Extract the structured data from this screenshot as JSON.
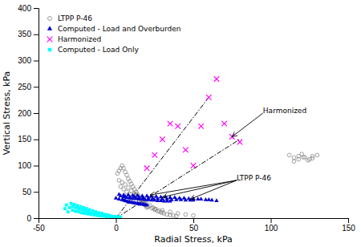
{
  "chart_data": {
    "type": "scatter",
    "xlabel": "Radial Stress, kPa",
    "ylabel": "Vertical Stress, kPa",
    "xlim": [
      -50,
      150
    ],
    "ylim": [
      0,
      400
    ],
    "xticks": [
      -50,
      0,
      50,
      100,
      150
    ],
    "yticks": [
      0,
      50,
      100,
      150,
      200,
      250,
      300,
      350,
      400
    ],
    "legend": "upper left",
    "series": [
      {
        "name": "LTPP P-46",
        "color": "#888888",
        "marker": "circle-open",
        "x": [
          1,
          2,
          3,
          4,
          5,
          6,
          7,
          8,
          9,
          10,
          11,
          12,
          13,
          14,
          15,
          16,
          17,
          18,
          19,
          20,
          3,
          5,
          7,
          9,
          11,
          13,
          15,
          17,
          19,
          21,
          23,
          25,
          27,
          29,
          31,
          33,
          35,
          37,
          39,
          2,
          4,
          6,
          8,
          10,
          12,
          14,
          16,
          18,
          20,
          22,
          24,
          26,
          28,
          30,
          5,
          10,
          15,
          20,
          25,
          30,
          35,
          40,
          45,
          50,
          112,
          115,
          118,
          120,
          122,
          125,
          127,
          130,
          115,
          118,
          121,
          124,
          127
        ],
        "values": [
          85,
          90,
          95,
          100,
          95,
          88,
          82,
          75,
          70,
          65,
          60,
          55,
          50,
          45,
          40,
          36,
          32,
          28,
          24,
          20,
          60,
          55,
          50,
          45,
          42,
          38,
          34,
          30,
          26,
          22,
          19,
          16,
          13,
          11,
          9,
          7,
          6,
          5,
          4,
          72,
          68,
          64,
          58,
          52,
          47,
          42,
          37,
          33,
          28,
          24,
          20,
          17,
          14,
          11,
          38,
          32,
          27,
          22,
          18,
          15,
          12,
          9,
          7,
          5,
          120,
          115,
          118,
          122,
          116,
          112,
          118,
          120,
          108,
          112,
          116,
          110,
          114
        ]
      },
      {
        "name": "Computed - Load and Overburden",
        "color": "#0000CD",
        "marker": "triangle",
        "x": [
          0,
          2,
          4,
          5,
          6,
          7,
          8,
          9,
          10,
          11,
          12,
          13,
          14,
          15,
          16,
          17,
          18,
          19,
          20,
          5,
          7,
          9,
          11,
          13,
          15,
          17,
          19,
          21,
          23,
          25,
          27,
          29,
          31,
          33,
          35,
          3,
          6,
          9,
          12,
          15,
          18,
          21,
          24,
          27,
          30,
          33,
          36,
          39,
          42,
          45,
          48,
          50,
          2,
          5,
          8,
          11,
          14,
          17,
          20,
          23,
          26,
          29,
          32,
          35,
          38,
          41,
          44,
          47,
          50,
          53,
          55,
          58,
          60,
          62,
          65
        ],
        "values": [
          38,
          36,
          35,
          34,
          33,
          32,
          31,
          30,
          30,
          29,
          29,
          28,
          28,
          27,
          27,
          26,
          26,
          25,
          25,
          40,
          39,
          38,
          37,
          37,
          36,
          36,
          35,
          35,
          34,
          34,
          33,
          33,
          32,
          32,
          32,
          42,
          41,
          40,
          40,
          39,
          38,
          38,
          37,
          37,
          36,
          36,
          35,
          35,
          35,
          34,
          34,
          34,
          45,
          44,
          44,
          43,
          43,
          42,
          42,
          41,
          41,
          40,
          40,
          39,
          39,
          38,
          38,
          37,
          37,
          36,
          36,
          35,
          35,
          34,
          33
        ]
      },
      {
        "name": "Harmonized",
        "color": "#FF00FF",
        "marker": "x",
        "x": [
          20,
          25,
          30,
          35,
          40,
          45,
          50,
          55,
          60,
          65,
          70,
          75,
          80
        ],
        "values": [
          95,
          120,
          150,
          180,
          175,
          130,
          100,
          175,
          230,
          265,
          180,
          155,
          145
        ]
      },
      {
        "name": "Computed - Load Only",
        "color": "#00FFFF",
        "marker": "square",
        "x": [
          -33,
          -30,
          -28,
          -26,
          -24,
          -22,
          -20,
          -18,
          -16,
          -14,
          -12,
          -10,
          -8,
          -6,
          -4,
          -2,
          0,
          2,
          3,
          -32,
          -29,
          -27,
          -25,
          -23,
          -21,
          -19,
          -17,
          -15,
          -13,
          -11,
          -9,
          -7,
          -5,
          -3,
          -1,
          1,
          -31,
          -28,
          -26,
          -24,
          -22,
          -20,
          -18,
          -16,
          -14,
          -12,
          -10,
          -8,
          -6,
          -4
        ],
        "values": [
          18,
          20,
          22,
          20,
          18,
          16,
          14,
          12,
          10,
          9,
          8,
          7,
          6,
          5,
          4,
          3,
          3,
          2,
          2,
          25,
          28,
          26,
          24,
          22,
          20,
          18,
          16,
          14,
          12,
          10,
          9,
          7,
          6,
          4,
          3,
          2,
          12,
          15,
          13,
          12,
          10,
          9,
          8,
          7,
          6,
          5,
          4,
          4,
          3,
          3
        ]
      },
      {
        "type": "line",
        "line_style": "dashdot",
        "color": "#000000",
        "x": [
          0,
          60
        ],
        "values": [
          0,
          230
        ]
      },
      {
        "type": "line",
        "line_style": "dashdot",
        "color": "#000000",
        "x": [
          0,
          80
        ],
        "values": [
          0,
          150
        ]
      }
    ],
    "annotations": [
      {
        "text": "Harmonized",
        "xy": [
          75,
          155
        ],
        "xytext": [
          95,
          200
        ]
      },
      {
        "text": "LTPP P-46",
        "xy": [
          48,
          36
        ],
        "xytext": [
          78,
          72
        ]
      },
      {
        "xy": [
          30,
          40
        ],
        "xytext": [
          78,
          72
        ]
      },
      {
        "xy": [
          22,
          44
        ],
        "xytext": [
          78,
          72
        ]
      }
    ]
  }
}
